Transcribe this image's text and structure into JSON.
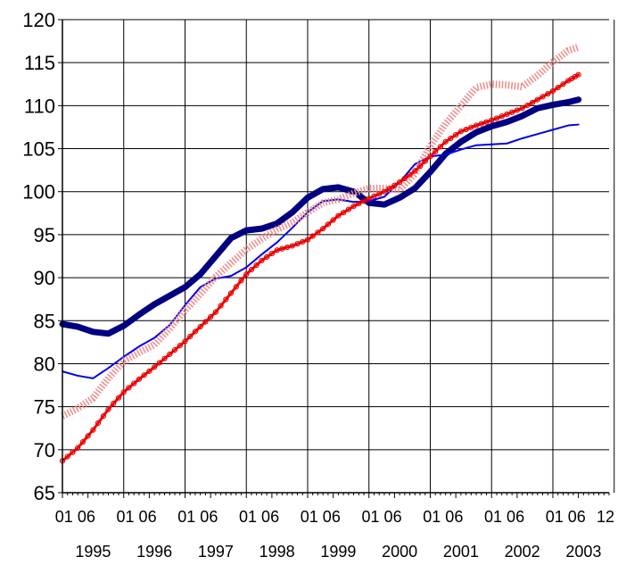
{
  "chart_data": {
    "type": "line",
    "title": "",
    "xlabel": "",
    "ylabel": "",
    "ylim": [
      65,
      120
    ],
    "y_ticks": [
      "65",
      "70",
      "75",
      "80",
      "85",
      "90",
      "95",
      "100",
      "105",
      "110",
      "115",
      "120"
    ],
    "years": [
      "1995",
      "1996",
      "1997",
      "1998",
      "1999",
      "2000",
      "2001",
      "2002",
      "2003"
    ],
    "month_ticks": [
      "01 06",
      "01 06",
      "01 06",
      "01 06",
      "01 06",
      "01 06",
      "01 06",
      "01 06",
      "01 06",
      "12"
    ],
    "x_range": [
      "1995-01",
      "2003-12"
    ],
    "grid": true,
    "legend": "none",
    "x_month_index_note": "",
    "series": [
      {
        "style": "thick-navy",
        "color": "#000080",
        "segments": [
          [
            [
              0,
              84.6
            ],
            [
              3,
              84.3
            ],
            [
              6,
              83.7
            ],
            [
              9,
              83.5
            ],
            [
              12,
              84.4
            ],
            [
              15,
              85.7
            ],
            [
              18,
              86.9
            ],
            [
              21,
              87.9
            ],
            [
              24,
              88.9
            ],
            [
              27,
              90.4
            ],
            [
              30,
              92.5
            ],
            [
              33,
              94.6
            ],
            [
              36,
              95.5
            ],
            [
              39,
              95.7
            ],
            [
              42,
              96.3
            ],
            [
              45,
              97.6
            ],
            [
              48,
              99.3
            ],
            [
              51,
              100.3
            ],
            [
              54,
              100.5
            ],
            [
              57,
              100.0
            ]
          ],
          [
            [
              58,
              99.6
            ],
            [
              60,
              98.7
            ],
            [
              63,
              98.5
            ],
            [
              66,
              99.3
            ],
            [
              69,
              100.4
            ],
            [
              72,
              102.3
            ],
            [
              75,
              104.4
            ],
            [
              78,
              105.8
            ],
            [
              81,
              106.9
            ],
            [
              84,
              107.6
            ],
            [
              87,
              108.1
            ],
            [
              90,
              108.8
            ],
            [
              93,
              109.7
            ],
            [
              96,
              110.1
            ],
            [
              99,
              110.4
            ],
            [
              101,
              110.7
            ]
          ]
        ]
      },
      {
        "style": "thin-blue",
        "color": "#0000ee",
        "segments": [
          [
            [
              0,
              79.1
            ],
            [
              3,
              78.6
            ],
            [
              6,
              78.3
            ],
            [
              9,
              79.5
            ],
            [
              12,
              80.8
            ],
            [
              15,
              82.0
            ],
            [
              18,
              83.0
            ],
            [
              21,
              84.5
            ],
            [
              24,
              86.8
            ],
            [
              27,
              88.9
            ],
            [
              30,
              89.9
            ],
            [
              33,
              90.2
            ],
            [
              36,
              91.2
            ],
            [
              39,
              92.7
            ],
            [
              42,
              94.1
            ],
            [
              45,
              95.8
            ],
            [
              48,
              97.6
            ],
            [
              51,
              98.9
            ],
            [
              54,
              99.1
            ],
            [
              57,
              98.8
            ],
            [
              60,
              98.9
            ],
            [
              63,
              99.4
            ],
            [
              66,
              101.1
            ],
            [
              69,
              103.2
            ],
            [
              72,
              104.1
            ],
            [
              75,
              104.3
            ],
            [
              78,
              104.9
            ],
            [
              81,
              105.4
            ],
            [
              84,
              105.5
            ],
            [
              87,
              105.6
            ],
            [
              90,
              106.2
            ],
            [
              93,
              106.7
            ],
            [
              96,
              107.2
            ],
            [
              99,
              107.7
            ],
            [
              101,
              107.8
            ]
          ]
        ]
      },
      {
        "style": "dotted-pink",
        "color": "#f08a8a",
        "segments": [
          [
            [
              0,
              73.9
            ],
            [
              3,
              74.8
            ],
            [
              6,
              76.0
            ],
            [
              9,
              78.3
            ],
            [
              12,
              80.3
            ],
            [
              15,
              81.3
            ],
            [
              18,
              82.2
            ],
            [
              21,
              84.1
            ],
            [
              24,
              86.2
            ],
            [
              27,
              88.1
            ],
            [
              30,
              90.1
            ],
            [
              33,
              91.7
            ],
            [
              36,
              93.3
            ],
            [
              39,
              94.5
            ],
            [
              42,
              95.6
            ],
            [
              45,
              96.4
            ],
            [
              48,
              97.6
            ],
            [
              51,
              98.7
            ],
            [
              54,
              99.1
            ],
            [
              57,
              99.8
            ],
            [
              60,
              100.4
            ],
            [
              63,
              100.4
            ],
            [
              66,
              100.2
            ],
            [
              69,
              102.1
            ],
            [
              72,
              105.3
            ],
            [
              75,
              107.9
            ],
            [
              78,
              110.0
            ],
            [
              81,
              112.1
            ],
            [
              84,
              112.5
            ],
            [
              87,
              112.4
            ],
            [
              90,
              112.2
            ],
            [
              93,
              113.5
            ],
            [
              96,
              115.1
            ],
            [
              99,
              116.4
            ],
            [
              101,
              116.8
            ]
          ]
        ]
      },
      {
        "style": "red-beaded",
        "color": "#ff0000",
        "segments": [
          [
            [
              0,
              68.7
            ],
            [
              3,
              70.2
            ],
            [
              6,
              72.3
            ],
            [
              9,
              74.7
            ],
            [
              12,
              76.7
            ],
            [
              15,
              78.2
            ],
            [
              18,
              79.6
            ],
            [
              21,
              81.1
            ],
            [
              24,
              82.6
            ],
            [
              27,
              84.3
            ],
            [
              30,
              86.0
            ],
            [
              33,
              88.2
            ],
            [
              36,
              90.4
            ],
            [
              39,
              92.0
            ],
            [
              42,
              93.2
            ],
            [
              45,
              93.7
            ],
            [
              48,
              94.4
            ],
            [
              51,
              95.7
            ],
            [
              54,
              97.2
            ],
            [
              57,
              98.3
            ],
            [
              60,
              99.2
            ],
            [
              63,
              100.0
            ],
            [
              66,
              101.1
            ],
            [
              69,
              102.4
            ],
            [
              72,
              104.1
            ],
            [
              75,
              105.8
            ],
            [
              78,
              107.0
            ],
            [
              81,
              107.7
            ],
            [
              84,
              108.3
            ],
            [
              87,
              109.0
            ],
            [
              90,
              109.7
            ],
            [
              93,
              110.7
            ],
            [
              96,
              111.7
            ],
            [
              99,
              112.9
            ],
            [
              101,
              113.6
            ]
          ]
        ]
      }
    ]
  }
}
